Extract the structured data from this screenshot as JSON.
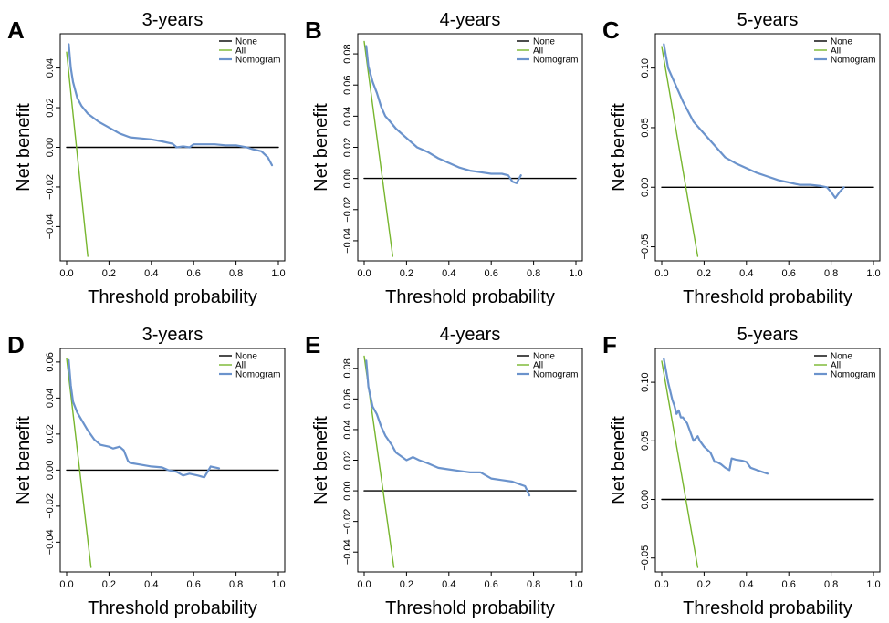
{
  "colors": {
    "none": "#000000",
    "all": "#77b62e",
    "nomogram": "#6b93cc",
    "axis": "#000000"
  },
  "chart_data": [
    {
      "type": "line",
      "letter": "A",
      "title": "3-years",
      "xlabel": "Threshold probability",
      "ylabel": "Net benefit",
      "xlim": [
        0,
        1
      ],
      "ylim": [
        -0.055,
        0.055
      ],
      "xticks": [
        0.0,
        0.2,
        0.4,
        0.6,
        0.8,
        1.0
      ],
      "xticklabels": [
        "0.0",
        "0.2",
        "0.4",
        "0.6",
        "0.8",
        "1.0"
      ],
      "yticks": [
        -0.04,
        -0.02,
        0.0,
        0.02,
        0.04
      ],
      "yticklabels": [
        "−0.04",
        "−0.02",
        "0.00",
        "0.02",
        "0.04"
      ],
      "legend": [
        "None",
        "All",
        "Nomogram"
      ],
      "legend_position": "top-right",
      "series": [
        {
          "name": "None",
          "x": [
            0.0,
            1.0
          ],
          "y": [
            0.0,
            0.0
          ]
        },
        {
          "name": "All",
          "x": [
            0.0,
            0.1
          ],
          "y": [
            0.048,
            -0.055
          ]
        },
        {
          "name": "Nomogram",
          "x": [
            0.01,
            0.02,
            0.03,
            0.05,
            0.07,
            0.1,
            0.15,
            0.2,
            0.25,
            0.3,
            0.35,
            0.4,
            0.45,
            0.5,
            0.52,
            0.55,
            0.58,
            0.6,
            0.65,
            0.7,
            0.75,
            0.8,
            0.85,
            0.88,
            0.92,
            0.95,
            0.97
          ],
          "y": [
            0.052,
            0.04,
            0.033,
            0.025,
            0.021,
            0.017,
            0.013,
            0.01,
            0.007,
            0.005,
            0.0045,
            0.004,
            0.003,
            0.0018,
            0.0,
            0.0005,
            0.0,
            0.0015,
            0.0015,
            0.0015,
            0.001,
            0.001,
            0.0,
            -0.001,
            -0.002,
            -0.005,
            -0.009
          ]
        }
      ]
    },
    {
      "type": "line",
      "letter": "B",
      "title": "4-years",
      "xlabel": "Threshold probability",
      "ylabel": "Net benefit",
      "xlim": [
        0,
        1
      ],
      "ylim": [
        -0.05,
        0.09
      ],
      "xticks": [
        0.0,
        0.2,
        0.4,
        0.6,
        0.8,
        1.0
      ],
      "xticklabels": [
        "0.0",
        "0.2",
        "0.4",
        "0.6",
        "0.8",
        "1.0"
      ],
      "yticks": [
        -0.04,
        -0.02,
        0.0,
        0.02,
        0.04,
        0.06,
        0.08
      ],
      "yticklabels": [
        "−0.04",
        "−0.02",
        "0.00",
        "0.02",
        "0.04",
        "0.06",
        "0.08"
      ],
      "legend": [
        "None",
        "All",
        "Nomogram"
      ],
      "legend_position": "top-right",
      "series": [
        {
          "name": "None",
          "x": [
            0.0,
            1.0
          ],
          "y": [
            0.0,
            0.0
          ]
        },
        {
          "name": "All",
          "x": [
            0.0,
            0.135
          ],
          "y": [
            0.088,
            -0.05
          ]
        },
        {
          "name": "Nomogram",
          "x": [
            0.01,
            0.02,
            0.04,
            0.06,
            0.08,
            0.1,
            0.12,
            0.15,
            0.2,
            0.25,
            0.3,
            0.35,
            0.4,
            0.45,
            0.5,
            0.55,
            0.6,
            0.65,
            0.68,
            0.7,
            0.72,
            0.74
          ],
          "y": [
            0.085,
            0.072,
            0.062,
            0.055,
            0.046,
            0.04,
            0.037,
            0.032,
            0.026,
            0.02,
            0.017,
            0.013,
            0.01,
            0.007,
            0.005,
            0.004,
            0.003,
            0.003,
            0.002,
            -0.002,
            -0.003,
            0.002
          ]
        }
      ]
    },
    {
      "type": "line",
      "letter": "C",
      "title": "5-years",
      "xlabel": "Threshold probability",
      "ylabel": "Net benefit",
      "xlim": [
        0,
        1
      ],
      "ylim": [
        -0.058,
        0.125
      ],
      "xticks": [
        0.0,
        0.2,
        0.4,
        0.6,
        0.8,
        1.0
      ],
      "xticklabels": [
        "0.0",
        "0.2",
        "0.4",
        "0.6",
        "0.8",
        "1.0"
      ],
      "yticks": [
        -0.05,
        0.0,
        0.05,
        0.1
      ],
      "yticklabels": [
        "−0.05",
        "0.00",
        "0.05",
        "0.10"
      ],
      "legend": [
        "None",
        "All",
        "Nomogram"
      ],
      "legend_position": "top-right",
      "series": [
        {
          "name": "None",
          "x": [
            0.0,
            1.0
          ],
          "y": [
            0.0,
            0.0
          ]
        },
        {
          "name": "All",
          "x": [
            0.0,
            0.17
          ],
          "y": [
            0.118,
            -0.058
          ]
        },
        {
          "name": "Nomogram",
          "x": [
            0.01,
            0.03,
            0.06,
            0.1,
            0.15,
            0.2,
            0.25,
            0.3,
            0.35,
            0.4,
            0.45,
            0.5,
            0.55,
            0.6,
            0.65,
            0.7,
            0.75,
            0.78,
            0.8,
            0.82,
            0.84,
            0.86
          ],
          "y": [
            0.12,
            0.1,
            0.088,
            0.072,
            0.055,
            0.045,
            0.035,
            0.025,
            0.02,
            0.016,
            0.012,
            0.009,
            0.006,
            0.004,
            0.002,
            0.002,
            0.001,
            0.0,
            -0.004,
            -0.009,
            -0.004,
            0.0
          ]
        }
      ]
    },
    {
      "type": "line",
      "letter": "D",
      "title": "3-years",
      "xlabel": "Threshold probability",
      "ylabel": "Net benefit",
      "xlim": [
        0,
        1
      ],
      "ylim": [
        -0.054,
        0.065
      ],
      "xticks": [
        0.0,
        0.2,
        0.4,
        0.6,
        0.8,
        1.0
      ],
      "xticklabels": [
        "0.0",
        "0.2",
        "0.4",
        "0.6",
        "0.8",
        "1.0"
      ],
      "yticks": [
        -0.04,
        -0.02,
        0.0,
        0.02,
        0.04,
        0.06
      ],
      "yticklabels": [
        "−0.04",
        "−0.02",
        "0.00",
        "0.02",
        "0.04",
        "0.06"
      ],
      "legend": [
        "None",
        "All",
        "Nomogram"
      ],
      "legend_position": "top-right",
      "series": [
        {
          "name": "None",
          "x": [
            0.0,
            1.0
          ],
          "y": [
            0.0,
            0.0
          ]
        },
        {
          "name": "All",
          "x": [
            0.0,
            0.115
          ],
          "y": [
            0.062,
            -0.054
          ]
        },
        {
          "name": "Nomogram",
          "x": [
            0.01,
            0.02,
            0.03,
            0.05,
            0.07,
            0.1,
            0.13,
            0.16,
            0.2,
            0.22,
            0.25,
            0.27,
            0.29,
            0.3,
            0.35,
            0.4,
            0.45,
            0.48,
            0.52,
            0.55,
            0.58,
            0.62,
            0.65,
            0.68,
            0.7,
            0.72
          ],
          "y": [
            0.061,
            0.047,
            0.038,
            0.032,
            0.028,
            0.022,
            0.017,
            0.014,
            0.013,
            0.012,
            0.013,
            0.011,
            0.005,
            0.004,
            0.003,
            0.002,
            0.0015,
            0.0,
            -0.001,
            -0.003,
            -0.002,
            -0.003,
            -0.004,
            0.002,
            0.0015,
            0.001
          ]
        }
      ]
    },
    {
      "type": "line",
      "letter": "E",
      "title": "4-years",
      "xlabel": "Threshold probability",
      "ylabel": "Net benefit",
      "xlim": [
        0,
        1
      ],
      "ylim": [
        -0.05,
        0.09
      ],
      "xticks": [
        0.0,
        0.2,
        0.4,
        0.6,
        0.8,
        1.0
      ],
      "xticklabels": [
        "0.0",
        "0.2",
        "0.4",
        "0.6",
        "0.8",
        "1.0"
      ],
      "yticks": [
        -0.04,
        -0.02,
        0.0,
        0.02,
        0.04,
        0.06,
        0.08
      ],
      "yticklabels": [
        "−0.04",
        "−0.02",
        "0.00",
        "0.02",
        "0.04",
        "0.06",
        "0.08"
      ],
      "legend": [
        "None",
        "All",
        "Nomogram"
      ],
      "legend_position": "top-right",
      "series": [
        {
          "name": "None",
          "x": [
            0.0,
            1.0
          ],
          "y": [
            0.0,
            0.0
          ]
        },
        {
          "name": "All",
          "x": [
            0.0,
            0.14
          ],
          "y": [
            0.088,
            -0.05
          ]
        },
        {
          "name": "Nomogram",
          "x": [
            0.01,
            0.02,
            0.04,
            0.06,
            0.08,
            0.1,
            0.13,
            0.15,
            0.18,
            0.2,
            0.23,
            0.26,
            0.3,
            0.35,
            0.4,
            0.45,
            0.5,
            0.55,
            0.6,
            0.65,
            0.7,
            0.74,
            0.76,
            0.78
          ],
          "y": [
            0.085,
            0.068,
            0.055,
            0.05,
            0.042,
            0.036,
            0.03,
            0.025,
            0.022,
            0.02,
            0.022,
            0.02,
            0.018,
            0.015,
            0.014,
            0.013,
            0.012,
            0.012,
            0.008,
            0.007,
            0.006,
            0.004,
            0.003,
            -0.003
          ]
        }
      ]
    },
    {
      "type": "line",
      "letter": "F",
      "title": "5-years",
      "xlabel": "Threshold probability",
      "ylabel": "Net benefit",
      "xlim": [
        0,
        1
      ],
      "ylim": [
        -0.058,
        0.125
      ],
      "xticks": [
        0.0,
        0.2,
        0.4,
        0.6,
        0.8,
        1.0
      ],
      "xticklabels": [
        "0.0",
        "0.2",
        "0.4",
        "0.6",
        "0.8",
        "1.0"
      ],
      "yticks": [
        -0.05,
        0.0,
        0.05,
        0.1
      ],
      "yticklabels": [
        "−0.05",
        "0.00",
        "0.05",
        "0.10"
      ],
      "legend": [
        "None",
        "All",
        "Nomogram"
      ],
      "legend_position": "top-right",
      "series": [
        {
          "name": "None",
          "x": [
            0.0,
            1.0
          ],
          "y": [
            0.0,
            0.0
          ]
        },
        {
          "name": "All",
          "x": [
            0.0,
            0.17
          ],
          "y": [
            0.118,
            -0.058
          ]
        },
        {
          "name": "Nomogram",
          "x": [
            0.01,
            0.03,
            0.05,
            0.06,
            0.07,
            0.08,
            0.09,
            0.1,
            0.12,
            0.13,
            0.15,
            0.17,
            0.18,
            0.2,
            0.23,
            0.25,
            0.26,
            0.28,
            0.3,
            0.32,
            0.33,
            0.35,
            0.38,
            0.4,
            0.42,
            0.45,
            0.5
          ],
          "y": [
            0.12,
            0.1,
            0.085,
            0.08,
            0.073,
            0.076,
            0.07,
            0.07,
            0.065,
            0.06,
            0.05,
            0.054,
            0.05,
            0.045,
            0.04,
            0.032,
            0.032,
            0.03,
            0.027,
            0.025,
            0.035,
            0.034,
            0.033,
            0.032,
            0.027,
            0.025,
            0.022
          ]
        }
      ]
    }
  ]
}
